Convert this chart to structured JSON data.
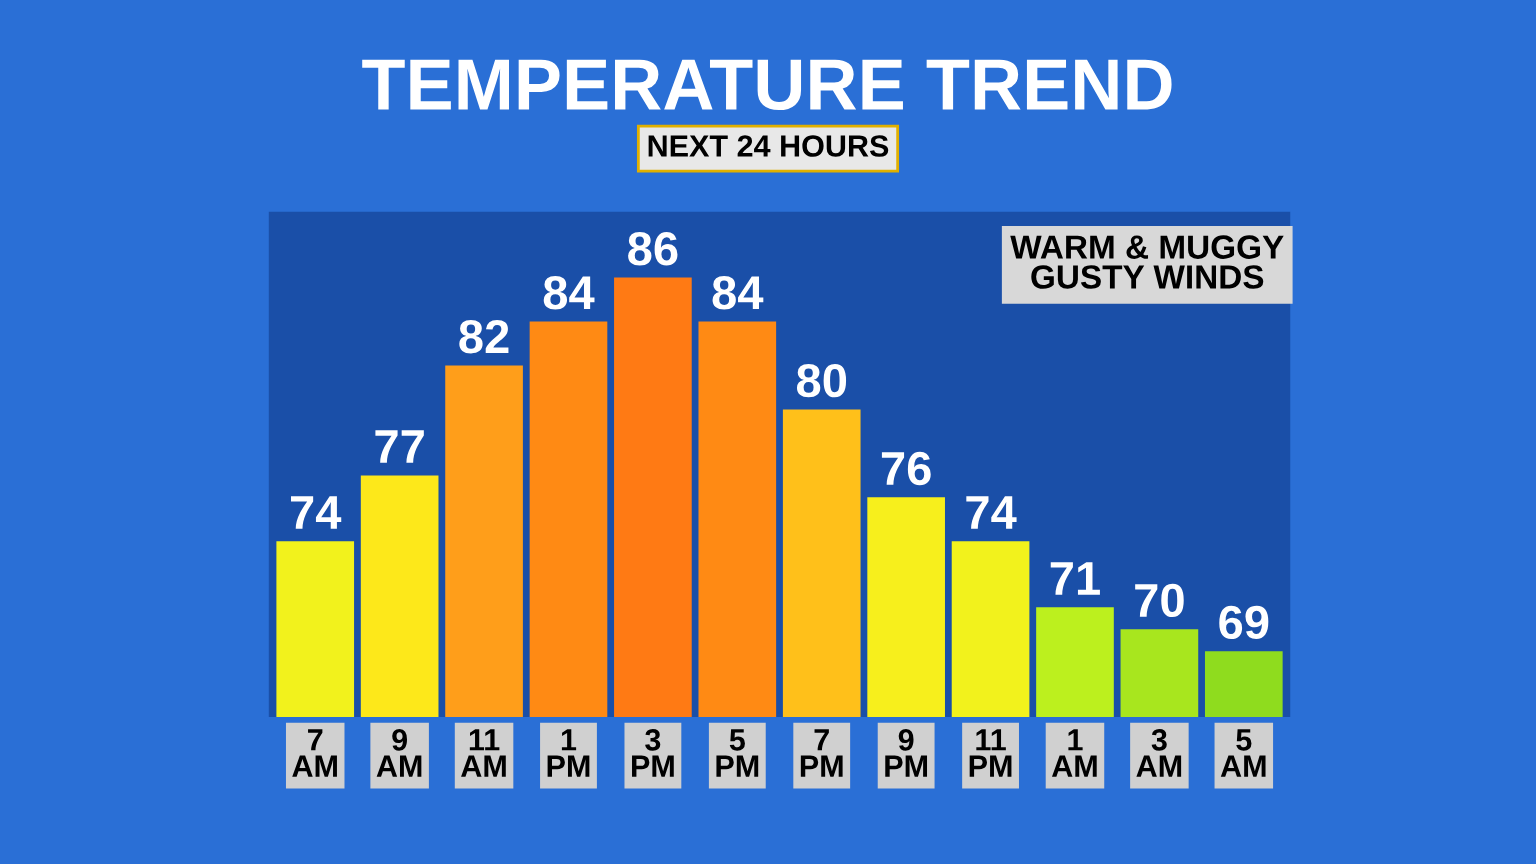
{
  "chart_data": {
    "type": "bar",
    "title": "TEMPERATURE TREND",
    "subtitle": "NEXT 24 HOURS",
    "categories": [
      "7\nAM",
      "9\nAM",
      "11\nAM",
      "1\nPM",
      "3\nPM",
      "5\nPM",
      "7\nPM",
      "9\nPM",
      "11\nPM",
      "1\nAM",
      "3\nAM",
      "5\nAM"
    ],
    "values": [
      74,
      77,
      82,
      84,
      86,
      84,
      80,
      76,
      74,
      71,
      70,
      69
    ],
    "colors": [
      "#f2f21c",
      "#fde81a",
      "#ff9e1a",
      "#ff8a14",
      "#ff7a14",
      "#ff8a14",
      "#ffc01a",
      "#f7ef1c",
      "#f2f21c",
      "#bcf01e",
      "#a8e61e",
      "#8fdc1e"
    ],
    "ylim": [
      66,
      89
    ],
    "data_labels": true,
    "grid": false,
    "annotations": [
      "WARM & MUGGY\nGUSTY WINDS"
    ]
  }
}
